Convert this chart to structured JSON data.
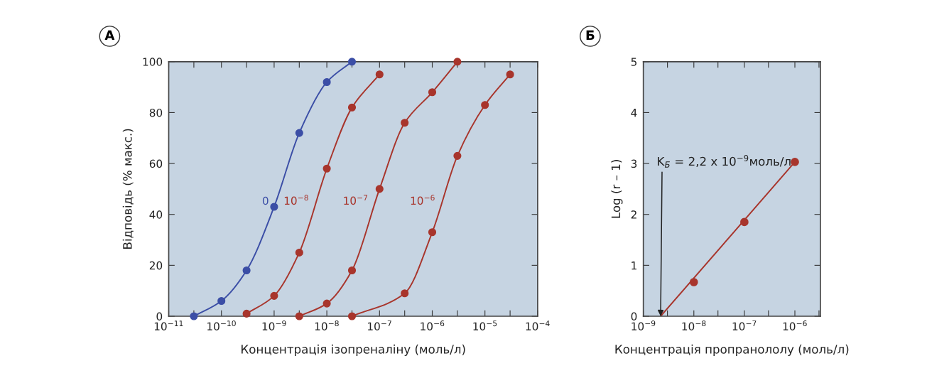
{
  "chart_data": [
    {
      "type": "line",
      "title": "А",
      "xlabel": "Концентрація ізопреналіну (моль/л)",
      "ylabel": "Відповідь (% макс.)",
      "log": "x",
      "marker": "circle",
      "grid": false,
      "legend": false,
      "xlim": [
        1e-11,
        0.0001
      ],
      "ylim": [
        0,
        100
      ],
      "xticks": [
        {
          "value": 1e-11,
          "label": "10$^{−11}$"
        },
        {
          "value": 3e-11,
          "label": null
        },
        {
          "value": 1e-10,
          "label": "10$^{−10}$"
        },
        {
          "value": 3e-10,
          "label": null
        },
        {
          "value": 1e-09,
          "label": "10$^{−9}$"
        },
        {
          "value": 3e-09,
          "label": null
        },
        {
          "value": 1e-08,
          "label": "10$^{−8}$"
        },
        {
          "value": 3e-08,
          "label": null
        },
        {
          "value": 1e-07,
          "label": "10$^{−7}$"
        },
        {
          "value": 3e-07,
          "label": null
        },
        {
          "value": 1e-06,
          "label": "10$^{−6}$"
        },
        {
          "value": 3e-06,
          "label": null
        },
        {
          "value": 1e-05,
          "label": "10$^{−5}$"
        },
        {
          "value": 3e-05,
          "label": null
        },
        {
          "value": 0.0001,
          "label": "10$^{−4}$"
        }
      ],
      "yticks": [
        0,
        20,
        40,
        60,
        80,
        100
      ],
      "series": [
        {
          "name": "0",
          "color": "#3b4ea6",
          "x": [
            3e-11,
            1e-10,
            3e-10,
            1e-09,
            3e-09,
            1e-08,
            3e-08
          ],
          "values": [
            0,
            6,
            18,
            43,
            72,
            92,
            100
          ]
        },
        {
          "name": "10$^{−8}$",
          "color": "#a8352c",
          "x": [
            3e-10,
            1e-09,
            3e-09,
            1e-08,
            3e-08,
            1e-07
          ],
          "values": [
            1,
            8,
            25,
            58,
            82,
            95
          ]
        },
        {
          "name": "10$^{−7}$",
          "color": "#a8352c",
          "x": [
            3e-09,
            1e-08,
            3e-08,
            1e-07,
            3e-07,
            1e-06,
            3e-06
          ],
          "values": [
            0,
            5,
            18,
            50,
            76,
            88,
            100
          ]
        },
        {
          "name": "10$^{−6}$",
          "color": "#a8352c",
          "x": [
            3e-08,
            3e-07,
            1e-06,
            3e-06,
            1e-05,
            3e-05
          ],
          "values": [
            0,
            9,
            33,
            63,
            83,
            95
          ]
        }
      ]
    },
    {
      "type": "scatter",
      "title": "Б",
      "xlabel": "Концентрація пропранололу (моль/л)",
      "ylabel": "Log (r – 1)",
      "log": "x",
      "marker": "circle",
      "grid": false,
      "legend": false,
      "xlim": [
        1e-09,
        3.2e-06
      ],
      "ylim": [
        0,
        5
      ],
      "xticks": [
        {
          "value": 1e-09,
          "label": "10$^{−9}$"
        },
        {
          "value": 3e-09,
          "label": null
        },
        {
          "value": 1e-08,
          "label": "10$^{−8}$"
        },
        {
          "value": 3e-08,
          "label": null
        },
        {
          "value": 1e-07,
          "label": "10$^{−7}$"
        },
        {
          "value": 3e-07,
          "label": null
        },
        {
          "value": 1e-06,
          "label": "10$^{−6}$"
        },
        {
          "value": 3e-06,
          "label": null
        }
      ],
      "yticks": [
        0,
        1,
        2,
        3,
        4,
        5
      ],
      "annotations": [
        {
          "text": "K$_{Б}$ = 2,2 x 10$^{−9}$моль/л",
          "x": 2.2e-09,
          "y": 0
        }
      ],
      "series": [
        {
          "type": "line",
          "marker": "none",
          "color": "#a8352c",
          "x": [
            2.2e-09,
            1e-06
          ],
          "values": [
            0,
            3.03
          ]
        },
        {
          "color": "#a8352c",
          "x": [
            1e-08,
            1e-07,
            1e-06
          ],
          "values": [
            0.67,
            1.85,
            3.03
          ]
        }
      ]
    }
  ]
}
